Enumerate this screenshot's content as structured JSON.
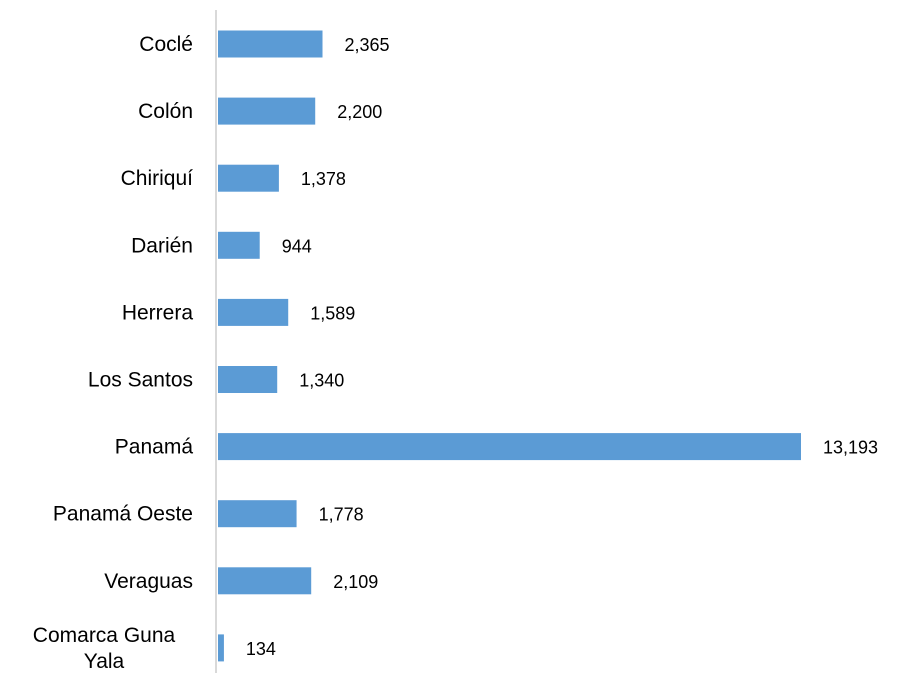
{
  "chart_data": {
    "type": "bar",
    "orientation": "horizontal",
    "categories": [
      "Coclé",
      "Colón",
      "Chiriquí",
      "Darién",
      "Herrera",
      "Los Santos",
      "Panamá",
      "Panamá Oeste",
      "Veraguas",
      "Comarca Guna Yala"
    ],
    "category_lines": [
      [
        "Coclé"
      ],
      [
        "Colón"
      ],
      [
        "Chiriquí"
      ],
      [
        "Darién"
      ],
      [
        "Herrera"
      ],
      [
        "Los Santos"
      ],
      [
        "Panamá"
      ],
      [
        "Panamá Oeste"
      ],
      [
        "Veraguas"
      ],
      [
        "Comarca Guna",
        "Yala"
      ]
    ],
    "values": [
      2365,
      2200,
      1378,
      944,
      1589,
      1340,
      13193,
      1778,
      2109,
      134
    ],
    "data_labels": [
      "2,365",
      "2,200",
      "1,378",
      "944",
      "1,589",
      "1,340",
      "13,193",
      "1,778",
      "2,109",
      "134"
    ],
    "title": "",
    "xlabel": "",
    "ylabel": "",
    "xlim": [
      0,
      13193
    ],
    "grid": false,
    "legend": "none",
    "bar_color": "#5B9BD5",
    "axis_color": "#D9D9D9"
  }
}
